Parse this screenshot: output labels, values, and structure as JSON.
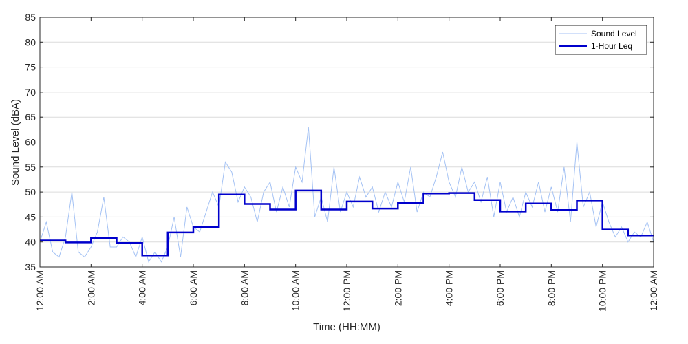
{
  "chart_data": {
    "type": "line",
    "title": "",
    "xlabel": "Time (HH:MM)",
    "ylabel": "Sound Level (dBA)",
    "ylim": [
      35,
      85
    ],
    "yticks": [
      35,
      40,
      45,
      50,
      55,
      60,
      65,
      70,
      75,
      80,
      85
    ],
    "xlim_hours": [
      0,
      24
    ],
    "xticks": [
      {
        "hour": 0,
        "label": "12:00 AM"
      },
      {
        "hour": 2,
        "label": "2:00 AM"
      },
      {
        "hour": 4,
        "label": "4:00 AM"
      },
      {
        "hour": 6,
        "label": "6:00 AM"
      },
      {
        "hour": 8,
        "label": "8:00 AM"
      },
      {
        "hour": 10,
        "label": "10:00 AM"
      },
      {
        "hour": 12,
        "label": "12:00 PM"
      },
      {
        "hour": 14,
        "label": "2:00 PM"
      },
      {
        "hour": 16,
        "label": "4:00 PM"
      },
      {
        "hour": 18,
        "label": "6:00 PM"
      },
      {
        "hour": 20,
        "label": "8:00 PM"
      },
      {
        "hour": 22,
        "label": "10:00 PM"
      },
      {
        "hour": 24,
        "label": "12:00 AM"
      }
    ],
    "grid": "horizontal",
    "legend": {
      "position": "top-right",
      "entries": [
        {
          "name": "Sound Level",
          "color": "#a4c2f4"
        },
        {
          "name": "1-Hour Leq",
          "color": "#0000cc"
        }
      ]
    },
    "series": [
      {
        "name": "Sound Level",
        "type": "line",
        "color": "#a4c2f4",
        "x_hours": [
          0,
          0.25,
          0.5,
          0.75,
          1,
          1.25,
          1.5,
          1.75,
          2,
          2.25,
          2.5,
          2.75,
          3,
          3.25,
          3.5,
          3.75,
          4,
          4.25,
          4.5,
          4.75,
          5,
          5.25,
          5.5,
          5.75,
          6,
          6.25,
          6.5,
          6.75,
          7,
          7.25,
          7.5,
          7.75,
          8,
          8.25,
          8.5,
          8.75,
          9,
          9.25,
          9.5,
          9.75,
          10,
          10.25,
          10.5,
          10.75,
          11,
          11.25,
          11.5,
          11.75,
          12,
          12.25,
          12.5,
          12.75,
          13,
          13.25,
          13.5,
          13.75,
          14,
          14.25,
          14.5,
          14.75,
          15,
          15.25,
          15.5,
          15.75,
          16,
          16.25,
          16.5,
          16.75,
          17,
          17.25,
          17.5,
          17.75,
          18,
          18.25,
          18.5,
          18.75,
          19,
          19.25,
          19.5,
          19.75,
          20,
          20.25,
          20.5,
          20.75,
          21,
          21.25,
          21.5,
          21.75,
          22,
          22.25,
          22.5,
          22.75,
          23,
          23.25,
          23.5,
          23.75,
          24
        ],
        "values": [
          40,
          44,
          38,
          37,
          41,
          50,
          38,
          37,
          39,
          42,
          49,
          39,
          39,
          41,
          40,
          37,
          41,
          36,
          38,
          36,
          39,
          45,
          37,
          47,
          43,
          42,
          46,
          50,
          47,
          56,
          54,
          48,
          51,
          49,
          44,
          50,
          52,
          46,
          51,
          47,
          55,
          52,
          63,
          45,
          49,
          44,
          55,
          46,
          50,
          47,
          53,
          49,
          51,
          46,
          50,
          47,
          52,
          48,
          55,
          46,
          50,
          49,
          53,
          58,
          52,
          49,
          55,
          50,
          52,
          48,
          53,
          45,
          52,
          46,
          49,
          45,
          50,
          47,
          52,
          46,
          51,
          46,
          55,
          44,
          60,
          47,
          50,
          43,
          48,
          44,
          41,
          43,
          40,
          42,
          41,
          44,
          40
        ]
      },
      {
        "name": "1-Hour Leq",
        "type": "step",
        "color": "#0000cc",
        "hours": [
          0,
          1,
          2,
          3,
          4,
          5,
          6,
          7,
          8,
          9,
          10,
          11,
          12,
          13,
          14,
          15,
          16,
          17,
          18,
          19,
          20,
          21,
          22,
          23
        ],
        "values": [
          40.3,
          39.9,
          40.8,
          39.8,
          37.3,
          41.9,
          43.0,
          49.5,
          47.6,
          46.5,
          50.3,
          46.5,
          48.1,
          46.7,
          47.8,
          49.7,
          49.8,
          48.4,
          46.1,
          47.7,
          46.4,
          48.3,
          42.5,
          41.3
        ]
      }
    ]
  }
}
